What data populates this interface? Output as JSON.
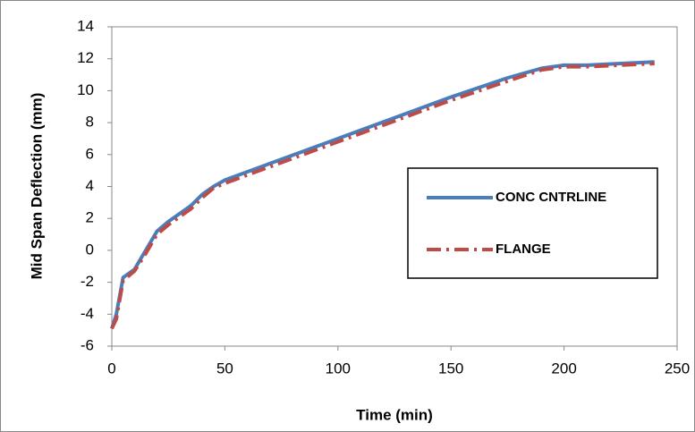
{
  "chart_data": {
    "type": "line",
    "xlabel": "Time (min)",
    "ylabel": "Mid Span Deflection (mm)",
    "x": [
      0,
      2,
      5,
      10,
      15,
      20,
      25,
      30,
      35,
      40,
      45,
      50,
      75,
      100,
      125,
      150,
      175,
      190,
      200,
      210,
      225,
      240
    ],
    "series": [
      {
        "name": "CONC CNTRLINE",
        "color": "#4a7ebb",
        "dash": "solid",
        "values": [
          -4.9,
          -4,
          -1.7,
          -1.2,
          0,
          1.2,
          1.8,
          2.3,
          2.8,
          3.5,
          4,
          4.4,
          5.7,
          7,
          8.3,
          9.6,
          10.8,
          11.4,
          11.6,
          11.6,
          11.7,
          11.8
        ]
      },
      {
        "name": "FLANGE",
        "color": "#be4b48",
        "dash": "dashdot",
        "values": [
          -4.9,
          -4.3,
          -1.9,
          -1.3,
          -0.2,
          1,
          1.6,
          2.1,
          2.6,
          3.3,
          3.9,
          4.2,
          5.5,
          6.8,
          8.1,
          9.4,
          10.6,
          11.3,
          11.5,
          11.5,
          11.6,
          11.7
        ]
      }
    ],
    "xlim": [
      0,
      250
    ],
    "xticks": [
      0,
      50,
      100,
      150,
      200,
      250
    ],
    "ylim": [
      -6,
      14
    ],
    "yticks": [
      -6,
      -4,
      -2,
      0,
      2,
      4,
      6,
      8,
      10,
      12,
      14
    ],
    "grid": false,
    "legend": "right"
  }
}
